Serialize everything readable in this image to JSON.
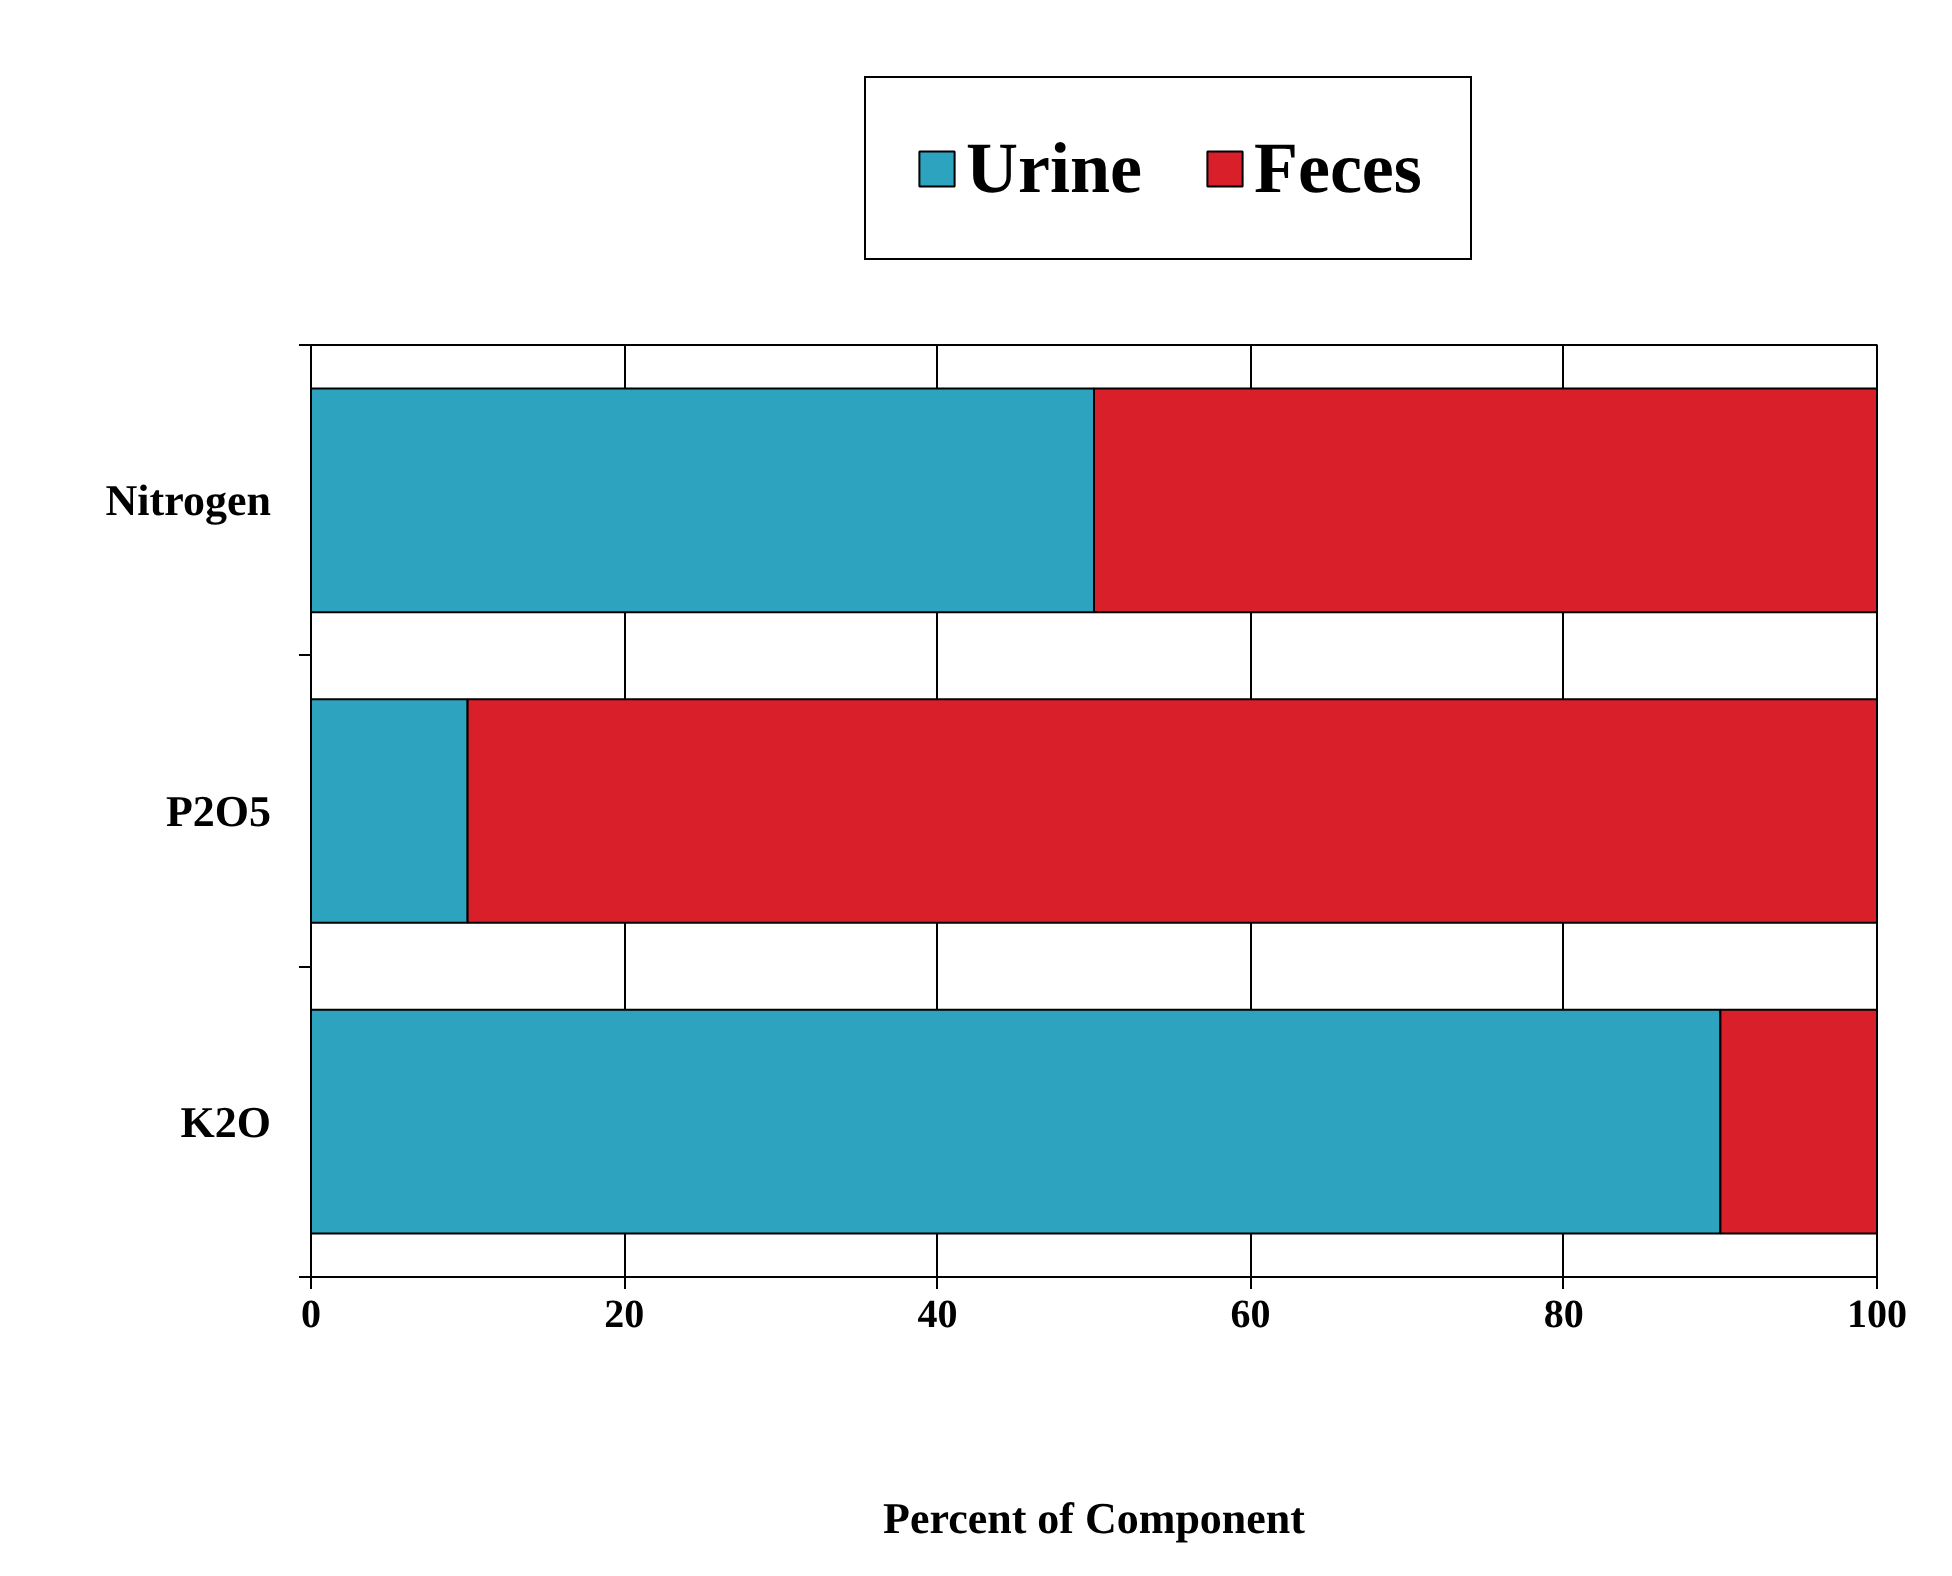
{
  "chart_data": {
    "type": "bar",
    "orientation": "horizontal",
    "stacked": true,
    "categories": [
      "Nitrogen",
      "P2O5",
      "K2O"
    ],
    "series": [
      {
        "name": "Urine",
        "color": "#2ea3bf",
        "values": [
          50,
          10,
          90
        ]
      },
      {
        "name": "Feces",
        "color": "#d9202a",
        "values": [
          50,
          90,
          10
        ]
      }
    ],
    "xlabel": "Percent of Component",
    "xlim": [
      0,
      100
    ],
    "xticks": [
      0,
      20,
      40,
      60,
      80,
      100
    ],
    "grid": "x",
    "legend": "top right"
  }
}
